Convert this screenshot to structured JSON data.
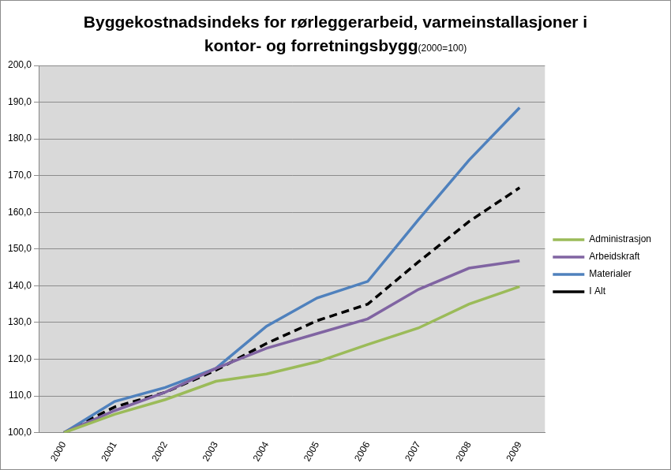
{
  "chart_data": {
    "type": "line",
    "title": "Byggekostnadsindeks for rørleggerarbeid, varmeinstallasjoner i kontor- og forretningsbygg",
    "subtitle": "(2000=100)",
    "categories": [
      "2000",
      "2001",
      "2002",
      "2003",
      "2004",
      "2005",
      "2006",
      "2007",
      "2008",
      "2009"
    ],
    "series": [
      {
        "name": "Administrasjon",
        "color": "#9bbb59",
        "line_style": "solid",
        "values": [
          100,
          105,
          109,
          114,
          116,
          119.3,
          124,
          128.5,
          135,
          139.8
        ]
      },
      {
        "name": "Arbeidskraft",
        "color": "#8064a2",
        "line_style": "solid",
        "values": [
          100,
          106,
          111,
          117.5,
          123,
          127,
          131,
          139,
          144.8,
          146.8
        ]
      },
      {
        "name": "Materialer",
        "color": "#4f81bd",
        "line_style": "solid",
        "values": [
          100,
          108.5,
          112.3,
          117.5,
          129,
          136.7,
          141.2,
          158,
          174.2,
          188.5
        ]
      },
      {
        "name": "I Alt",
        "color": "#000000",
        "line_style": "dashed",
        "values": [
          100,
          107,
          111,
          117,
          124.3,
          130.5,
          135,
          146.5,
          157.5,
          166.7
        ]
      }
    ],
    "ylim": [
      100,
      200
    ],
    "yticks": [
      {
        "value": 100,
        "label": "100,0"
      },
      {
        "value": 110,
        "label": "110,0"
      },
      {
        "value": 120,
        "label": "120,0"
      },
      {
        "value": 130,
        "label": "130,0"
      },
      {
        "value": 140,
        "label": "140,0"
      },
      {
        "value": 150,
        "label": "150,0"
      },
      {
        "value": 160,
        "label": "160,0"
      },
      {
        "value": 170,
        "label": "170,0"
      },
      {
        "value": 180,
        "label": "180,0"
      },
      {
        "value": 190,
        "label": "190,0"
      },
      {
        "value": 200,
        "label": "200,0"
      }
    ],
    "grid": true,
    "legend": "right"
  }
}
